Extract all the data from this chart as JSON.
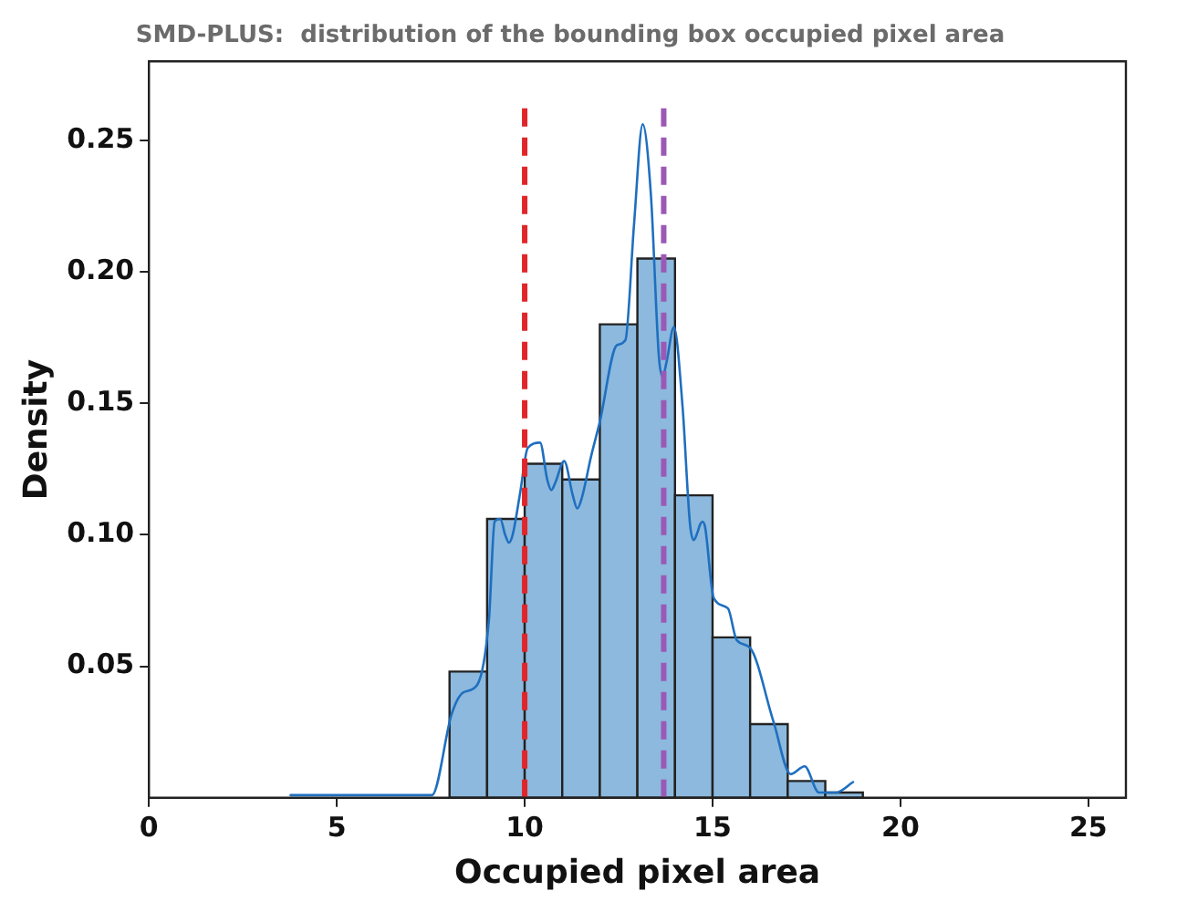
{
  "chart_data": {
    "type": "histogram",
    "title": "SMD-PLUS:  distribution of the bounding box occupied pixel area",
    "xlabel": "Occupied pixel area",
    "ylabel": "Density",
    "bins": [
      8,
      9,
      10,
      11,
      12,
      13,
      14,
      15,
      16,
      17,
      18,
      19
    ],
    "values": [
      0.048,
      0.106,
      0.127,
      0.121,
      0.18,
      0.205,
      0.115,
      0.061,
      0.028,
      0.0064,
      0.002
    ],
    "color": "#8cb9dd",
    "series": [
      {
        "type": "line",
        "color": "#1f6fc0",
        "x": [
          3.77,
          7.53,
          8.06,
          8.36,
          8.74,
          9.05,
          9.2,
          9.35,
          9.48,
          9.58,
          9.68,
          9.88,
          10.08,
          10.41,
          10.6,
          10.71,
          10.82,
          11.05,
          11.28,
          11.4,
          11.52,
          11.77,
          12.0,
          12.45,
          12.68,
          12.91,
          13.14,
          13.36,
          13.57,
          13.67,
          13.78,
          13.97,
          14.2,
          14.4,
          14.5,
          14.6,
          14.67,
          14.73,
          14.8,
          15.03,
          15.41,
          15.64,
          16.0,
          16.62,
          17.08,
          17.45,
          17.83,
          18.28,
          18.74
        ],
        "values": [
          0.001,
          0.001,
          0.032,
          0.04,
          0.043,
          0.068,
          0.105,
          0.106,
          0.1,
          0.097,
          0.1,
          0.116,
          0.133,
          0.135,
          0.121,
          0.117,
          0.12,
          0.128,
          0.115,
          0.11,
          0.114,
          0.13,
          0.143,
          0.172,
          0.174,
          0.218,
          0.256,
          0.229,
          0.168,
          0.16,
          0.166,
          0.179,
          0.149,
          0.104,
          0.098,
          0.101,
          0.104,
          0.105,
          0.103,
          0.076,
          0.072,
          0.06,
          0.057,
          0.029,
          0.009,
          0.012,
          0.002,
          0.002,
          0.006
        ]
      }
    ],
    "ref_lines": [
      {
        "axis": "x",
        "value": 10,
        "color": "#e0262a",
        "line_style": "dashed"
      },
      {
        "axis": "x",
        "value": 13.7,
        "color": "#9b59b6",
        "line_style": "dashed"
      }
    ],
    "xlim": [
      0,
      26
    ],
    "xticks": [
      0,
      5,
      10,
      15,
      20,
      25
    ],
    "ylim": [
      0,
      0.28
    ],
    "yticks": [
      {
        "value": 0.05,
        "label": "0.05"
      },
      {
        "value": 0.1,
        "label": "0.10"
      },
      {
        "value": 0.15,
        "label": "0.15"
      },
      {
        "value": 0.2,
        "label": "0.20"
      },
      {
        "value": 0.25,
        "label": "0.25"
      }
    ],
    "grid": false,
    "legend": false
  }
}
